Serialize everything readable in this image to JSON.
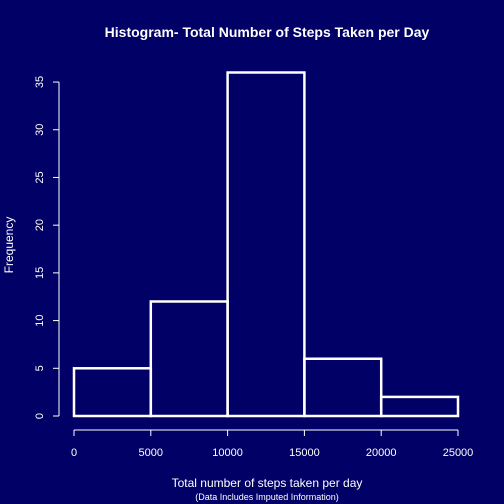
{
  "chart_data": {
    "type": "bar",
    "title": "Histogram- Total Number of Steps Taken per Day",
    "xlabel": "Total number of steps taken per day",
    "sub": "(Data Includes Imputed Information)",
    "ylabel": "Frequency",
    "bins": [
      {
        "from": 0,
        "to": 5000,
        "count": 5
      },
      {
        "from": 5000,
        "to": 10000,
        "count": 12
      },
      {
        "from": 10000,
        "to": 15000,
        "count": 36
      },
      {
        "from": 15000,
        "to": 20000,
        "count": 6
      },
      {
        "from": 20000,
        "to": 25000,
        "count": 2
      }
    ],
    "xticks": [
      0,
      5000,
      10000,
      15000,
      20000,
      25000
    ],
    "yticks": [
      0,
      5,
      10,
      15,
      20,
      25,
      30,
      35
    ],
    "xlim": [
      0,
      25000
    ],
    "ylim": [
      0,
      36
    ],
    "grid": false,
    "colors": {
      "background": "#000066",
      "foreground": "#ffffff"
    }
  }
}
